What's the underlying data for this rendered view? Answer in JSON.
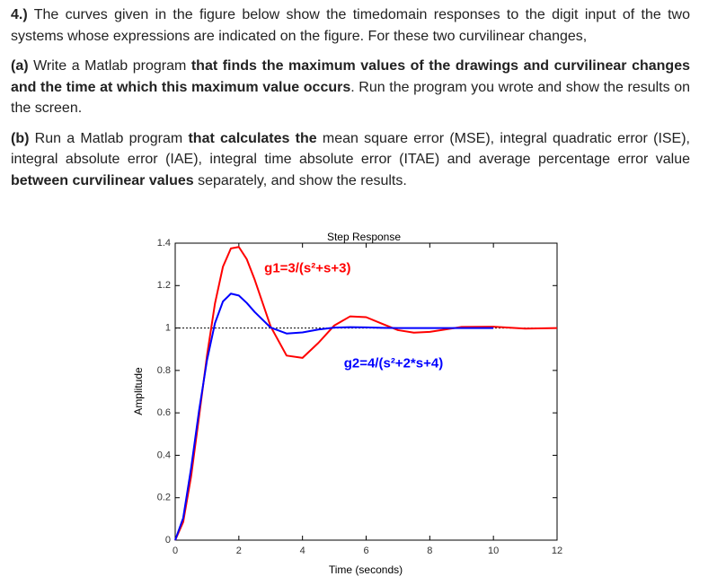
{
  "document": {
    "paragraphs": [
      {
        "segments": [
          {
            "text": "4.)",
            "bold": true
          },
          {
            "text": " The curves given in the figure below show the timedomain responses to the digit input of the two systems whose expressions are indicated on the figure. For these two curvilinear changes,",
            "bold": false
          }
        ]
      },
      {
        "segments": [
          {
            "text": "(a)",
            "bold": true
          },
          {
            "text": " Write a Matlab program ",
            "bold": false
          },
          {
            "text": "that finds the maximum values of the drawings and curvilinear changes and the time at which this maximum value occurs",
            "bold": true
          },
          {
            "text": ". Run the program you wrote and show the results on the screen.",
            "bold": false
          }
        ]
      },
      {
        "segments": [
          {
            "text": "(b)",
            "bold": true
          },
          {
            "text": " Run a Matlab program ",
            "bold": false
          },
          {
            "text": "that calculates  the",
            "bold": true
          },
          {
            "text": " mean square error (MSE), integral quadratic error (ISE), integral absolute error (IAE), integral time absolute error (ITAE) and average percentage error value  ",
            "bold": false
          },
          {
            "text": "between curvilinear values",
            "bold": true
          },
          {
            "text": " separately, and show the results.",
            "bold": false
          }
        ]
      }
    ]
  },
  "chart_data": {
    "type": "line",
    "title": "Step Response",
    "x_label": "Time (seconds)",
    "y_label": "Amplitude",
    "x": [
      0,
      0.25,
      0.5,
      0.75,
      1,
      1.25,
      1.5,
      1.75,
      2,
      2.25,
      2.5,
      3,
      3.5,
      4,
      4.5,
      5,
      5.5,
      6,
      6.5,
      7,
      7.5,
      8,
      9,
      10,
      11,
      12
    ],
    "series": [
      {
        "name": "g1",
        "color": "#ff0000",
        "values": [
          0,
          0.085,
          0.301,
          0.583,
          0.871,
          1.116,
          1.289,
          1.375,
          1.382,
          1.324,
          1.227,
          1.007,
          0.87,
          0.859,
          0.93,
          1.012,
          1.055,
          1.051,
          1.02,
          0.99,
          0.978,
          0.982,
          1.005,
          1.006,
          0.997,
          1.0
        ]
      },
      {
        "name": "g2",
        "color": "#0000ff",
        "values": [
          0,
          0.104,
          0.34,
          0.611,
          0.849,
          1.023,
          1.125,
          1.162,
          1.153,
          1.118,
          1.075,
          1.002,
          0.974,
          0.979,
          0.993,
          1.002,
          1.004,
          1.003,
          1.001,
          1.0,
          1.0,
          1.0,
          1.0,
          1.0,
          null,
          null
        ]
      }
    ],
    "annotations": [
      {
        "text": "g1=3/(s²+s+3)",
        "color": "#ff0000",
        "x": 2.8,
        "y": 1.28
      },
      {
        "text": "g2=4/(s²+2*s+4)",
        "color": "#0000ff",
        "x": 5.3,
        "y": 0.83
      }
    ],
    "reference_y": 1,
    "xlim": [
      0,
      12
    ],
    "xticks": [
      0,
      2,
      4,
      6,
      8,
      10,
      12
    ],
    "ylim": [
      0,
      1.4
    ],
    "yticks": [
      0,
      0.2,
      0.4,
      0.6,
      0.8,
      1,
      1.2,
      1.4
    ]
  }
}
